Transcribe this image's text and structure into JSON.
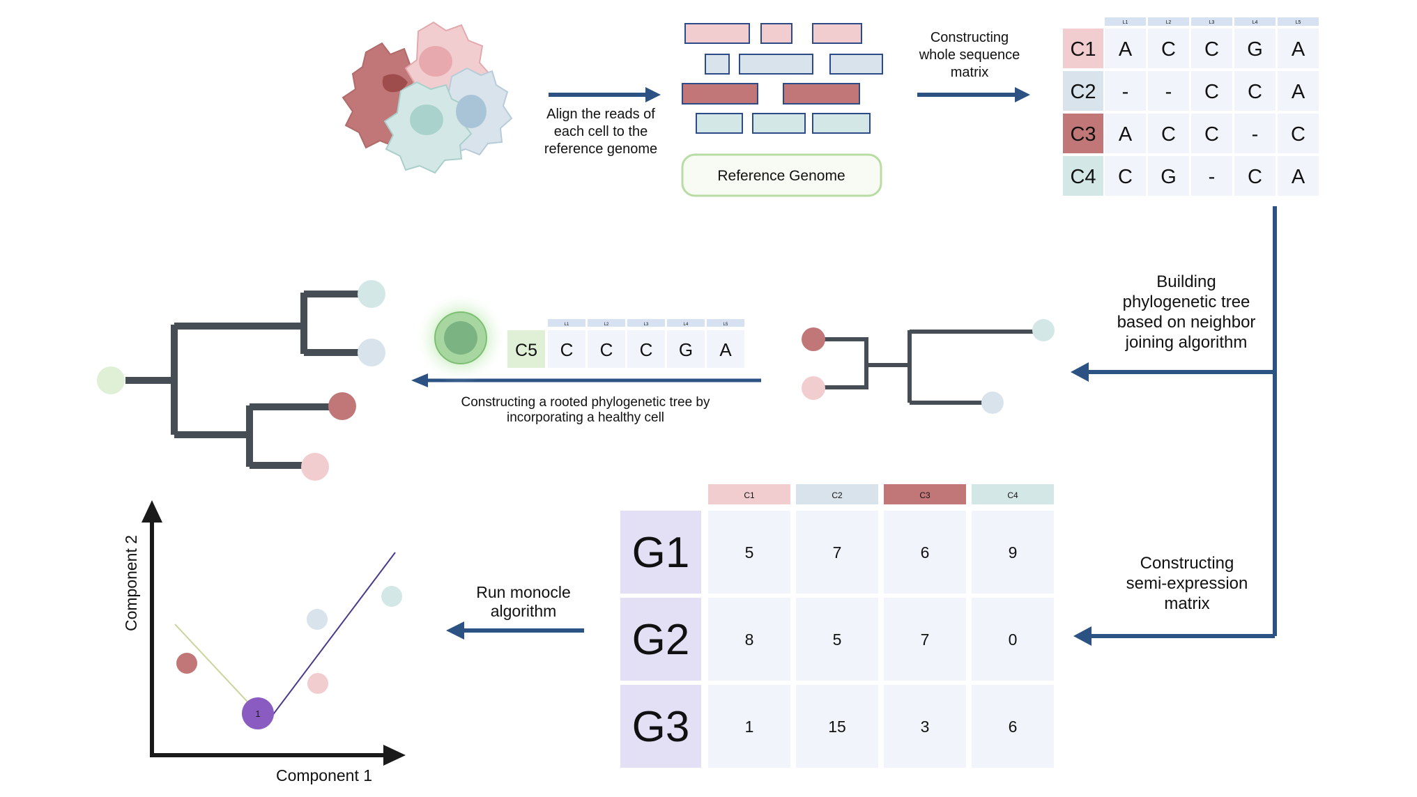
{
  "colors": {
    "c1": "#f2cdd0",
    "c2": "#d8e3ec",
    "c3": "#c17777",
    "c4": "#d3e8e6",
    "c5": "#dff0d6",
    "cell_bg": "#f1f5fb",
    "header_bg": "#d6e2f2",
    "gene_bg": "#e3e0f5",
    "arrow": "#2c5284",
    "tree": "#474d55",
    "pseudo_node": "#8a5cc2",
    "ref_box": "#8ec26f"
  },
  "step1": {
    "label_lines": [
      "Align the reads of",
      "each cell to the",
      "reference genome"
    ],
    "reference_label": "Reference Genome"
  },
  "step2": {
    "label_lines": [
      "Constructing",
      "whole sequence",
      "matrix"
    ],
    "loci": [
      "L1",
      "L2",
      "L3",
      "L4",
      "L5"
    ],
    "rows": [
      {
        "cell": "C1",
        "color": "#f2cdd0",
        "values": [
          "A",
          "C",
          "C",
          "G",
          "A"
        ]
      },
      {
        "cell": "C2",
        "color": "#d8e3ec",
        "values": [
          "-",
          "-",
          "C",
          "C",
          "A"
        ]
      },
      {
        "cell": "C3",
        "color": "#c17777",
        "values": [
          "A",
          "C",
          "C",
          "-",
          "C"
        ]
      },
      {
        "cell": "C4",
        "color": "#d3e8e6",
        "values": [
          "C",
          "G",
          "-",
          "C",
          "A"
        ]
      }
    ]
  },
  "step3": {
    "label_lines": [
      "Building",
      "phylogenetic tree",
      "based on neighbor",
      "joining algorithm"
    ]
  },
  "step4": {
    "label_lines": [
      "Constructing a rooted phylogenetic tree by",
      "incorporating a healthy cell"
    ],
    "healthy_cell": {
      "cell": "C5",
      "color": "#dff0d6",
      "loci": [
        "L1",
        "L2",
        "L3",
        "L4",
        "L5"
      ],
      "values": [
        "C",
        "C",
        "C",
        "G",
        "A"
      ]
    }
  },
  "step5": {
    "label_lines": [
      "Constructing",
      "semi-expression",
      "matrix"
    ],
    "columns": [
      {
        "name": "C1",
        "color": "#f2cdd0"
      },
      {
        "name": "C2",
        "color": "#d8e3ec"
      },
      {
        "name": "C3",
        "color": "#c17777"
      },
      {
        "name": "C4",
        "color": "#d3e8e6"
      }
    ],
    "rows": [
      {
        "gene": "G1",
        "values": [
          5,
          7,
          6,
          9
        ]
      },
      {
        "gene": "G2",
        "values": [
          8,
          5,
          7,
          0
        ]
      },
      {
        "gene": "G3",
        "values": [
          1,
          15,
          3,
          6
        ]
      }
    ]
  },
  "step6": {
    "label_lines": [
      "Run monocle",
      "algorithm"
    ],
    "x_axis_label": "Component 1",
    "y_axis_label": "Component 2",
    "node_label": "1"
  }
}
